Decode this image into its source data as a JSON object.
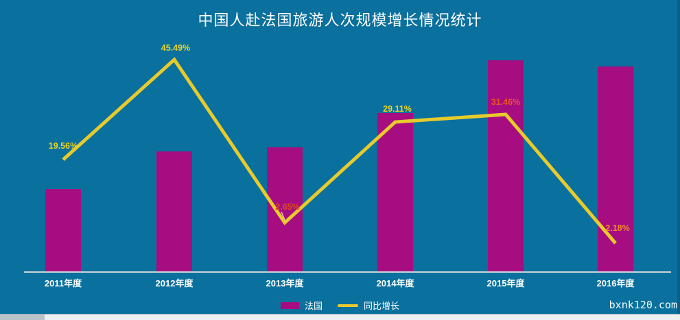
{
  "title": "中国人赴法国旅游人次规模增长情况统计",
  "watermark": "bxnk120.com",
  "colors": {
    "background": "#0a709d",
    "bar": "#a60d81",
    "line": "#e7cb2d",
    "axis_line": "#c9d5da",
    "text": "#ffffff",
    "label_yellow": "#e6d228"
  },
  "legend": [
    {
      "label": "法国",
      "swatch_color": "#a60d81"
    },
    {
      "label": "同比增长",
      "swatch_color": "#e7cb2d"
    }
  ],
  "chart_data": {
    "type": "combo-bar-line",
    "title": "中国人赴法国旅游人次规模增长情况统计",
    "categories": [
      "2011年度",
      "2012年度",
      "2013年度",
      "2014年度",
      "2015年度",
      "2016年度"
    ],
    "series": [
      {
        "name": "法国",
        "type": "bar",
        "values_relative": [
          0.39,
          0.57,
          0.59,
          0.75,
          1.0,
          0.97
        ]
      },
      {
        "name": "同比增长",
        "type": "line",
        "unit": "%",
        "values": [
          19.56,
          45.49,
          2.65,
          29.11,
          31.46,
          2.18
        ],
        "point_labels": [
          {
            "text": "19.56%",
            "color": "#e6d228"
          },
          {
            "text": "45.49%",
            "color": "#e6d228"
          },
          {
            "text": "2.65%",
            "color": "#dc4727"
          },
          {
            "text": "29.11%",
            "color": "#e6d228"
          },
          {
            "text": "31.46%",
            "color": "#ee5226"
          },
          {
            "text": "2.18%",
            "color": "#f28a2b"
          }
        ]
      }
    ],
    "legend_position": "bottom",
    "grid": false,
    "y_axis_labels": false
  }
}
